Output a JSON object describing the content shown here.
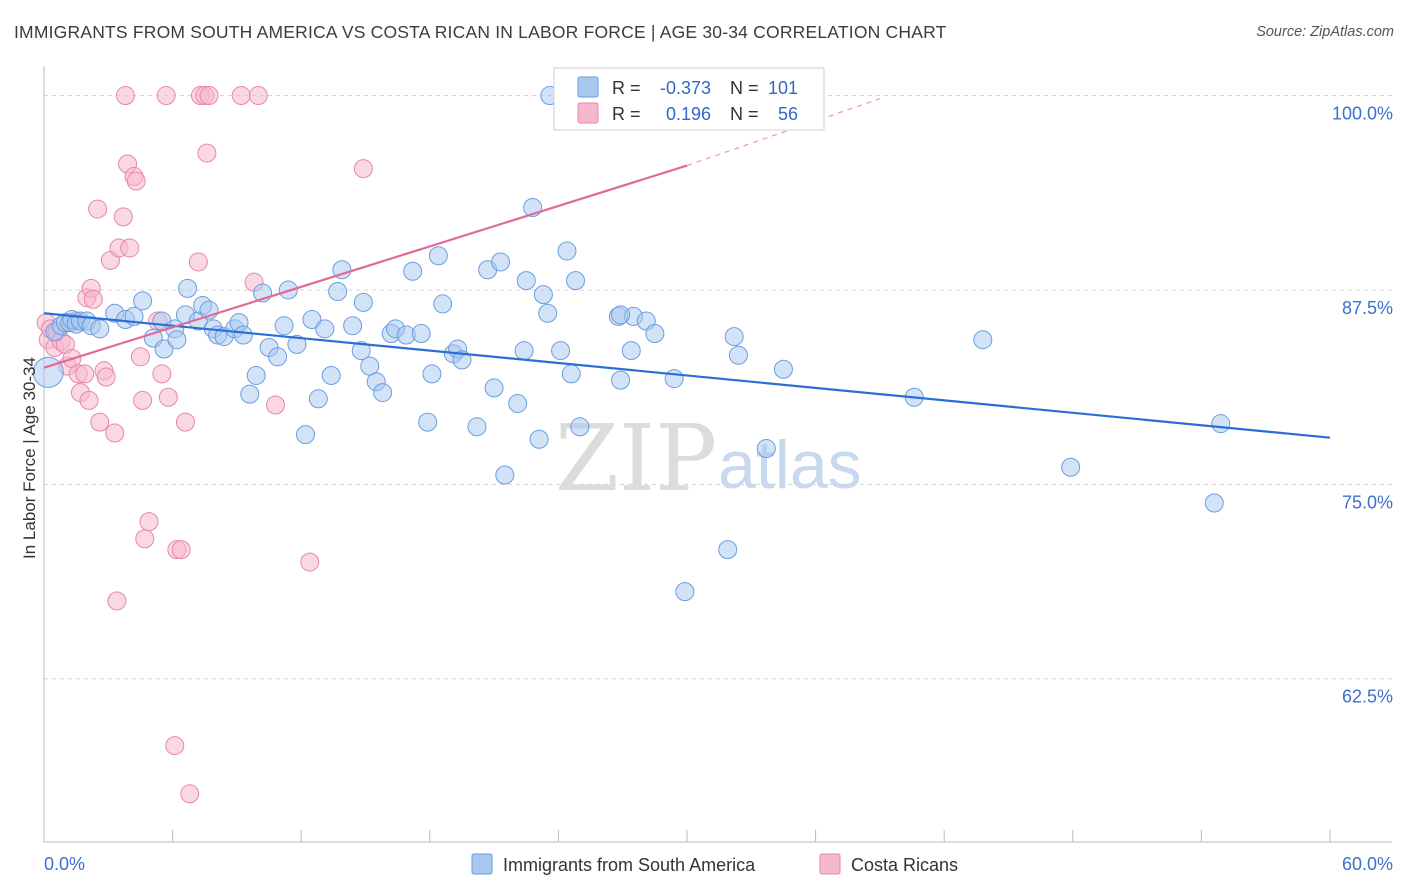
{
  "header": {
    "title": "IMMIGRANTS FROM SOUTH AMERICA VS COSTA RICAN IN LABOR FORCE | AGE 30-34 CORRELATION CHART",
    "source": "Source: ZipAtlas.com"
  },
  "legend": {
    "rows": [
      {
        "r_label": "R =",
        "r_value": "-0.373",
        "n_label": "N =",
        "n_value": "101",
        "color": "#a8c8f0",
        "stroke": "#6a9de0"
      },
      {
        "r_label": "R =",
        "r_value": "0.196",
        "n_label": "N =",
        "n_value": "56",
        "color": "#f5b8cc",
        "stroke": "#e887a8"
      }
    ]
  },
  "watermark": {
    "zip": "ZIP",
    "atlas": "atlas"
  },
  "chart_data": {
    "type": "scatter",
    "title": "IMMIGRANTS FROM SOUTH AMERICA VS COSTA RICAN IN LABOR FORCE | AGE 30-34 CORRELATION CHART",
    "xlabel": "",
    "ylabel": "In Labor Force | Age 30-34",
    "xlim": [
      0,
      60
    ],
    "ylim": [
      52,
      101
    ],
    "x_tick_labels": [
      "0.0%",
      "60.0%"
    ],
    "y_ticks": [
      100,
      87.5,
      75,
      62.5
    ],
    "y_tick_labels": [
      "100.0%",
      "87.5%",
      "75.0%",
      "62.5%"
    ],
    "grid": true,
    "legend_position": "top-center",
    "series": [
      {
        "name": "Immigrants from South America",
        "color": "#a8c8f0",
        "stroke": "#6a9de0",
        "trend": {
          "x": [
            0,
            60
          ],
          "y": [
            86.0,
            78.0
          ],
          "color": "#2b6fd6"
        },
        "points": [
          [
            0.2,
            82.2
          ],
          [
            0.5,
            84.8
          ],
          [
            0.8,
            85.2
          ],
          [
            1.0,
            85.4
          ],
          [
            1.2,
            85.4
          ],
          [
            1.3,
            85.6
          ],
          [
            1.5,
            85.3
          ],
          [
            1.7,
            85.5
          ],
          [
            2.0,
            85.5
          ],
          [
            2.2,
            85.2
          ],
          [
            2.6,
            85.0
          ],
          [
            3.3,
            86.0
          ],
          [
            3.8,
            85.6
          ],
          [
            4.2,
            85.8
          ],
          [
            4.6,
            86.8
          ],
          [
            5.1,
            84.4
          ],
          [
            5.5,
            85.5
          ],
          [
            5.6,
            83.7
          ],
          [
            6.1,
            85.0
          ],
          [
            6.2,
            84.3
          ],
          [
            6.6,
            85.9
          ],
          [
            6.7,
            87.6
          ],
          [
            7.2,
            85.5
          ],
          [
            7.4,
            86.5
          ],
          [
            7.7,
            86.2
          ],
          [
            7.9,
            85.0
          ],
          [
            8.1,
            84.6
          ],
          [
            8.4,
            84.5
          ],
          [
            8.9,
            85.0
          ],
          [
            9.1,
            85.4
          ],
          [
            9.3,
            84.6
          ],
          [
            9.6,
            80.8
          ],
          [
            9.9,
            82.0
          ],
          [
            10.2,
            87.3
          ],
          [
            10.5,
            83.8
          ],
          [
            10.9,
            83.2
          ],
          [
            11.2,
            85.2
          ],
          [
            11.4,
            87.5
          ],
          [
            11.8,
            84.0
          ],
          [
            12.2,
            78.2
          ],
          [
            12.5,
            85.6
          ],
          [
            12.8,
            80.5
          ],
          [
            13.1,
            85.0
          ],
          [
            13.4,
            82.0
          ],
          [
            13.7,
            87.4
          ],
          [
            13.9,
            88.8
          ],
          [
            14.4,
            85.2
          ],
          [
            14.8,
            83.6
          ],
          [
            14.9,
            86.7
          ],
          [
            15.2,
            82.6
          ],
          [
            15.5,
            81.6
          ],
          [
            15.8,
            80.9
          ],
          [
            16.2,
            84.7
          ],
          [
            16.4,
            85.0
          ],
          [
            16.9,
            84.6
          ],
          [
            17.2,
            88.7
          ],
          [
            17.6,
            84.7
          ],
          [
            17.9,
            79.0
          ],
          [
            18.1,
            82.1
          ],
          [
            18.4,
            89.7
          ],
          [
            18.6,
            86.6
          ],
          [
            19.1,
            83.4
          ],
          [
            19.3,
            83.7
          ],
          [
            19.5,
            83.0
          ],
          [
            20.2,
            78.7
          ],
          [
            20.7,
            88.8
          ],
          [
            21.0,
            81.2
          ],
          [
            21.3,
            89.3
          ],
          [
            21.5,
            75.6
          ],
          [
            22.1,
            80.2
          ],
          [
            22.4,
            83.6
          ],
          [
            22.5,
            88.1
          ],
          [
            22.8,
            92.8
          ],
          [
            23.1,
            77.9
          ],
          [
            23.3,
            87.2
          ],
          [
            23.5,
            86.0
          ],
          [
            23.6,
            100.0
          ],
          [
            24.1,
            83.6
          ],
          [
            24.4,
            90.0
          ],
          [
            24.6,
            82.1
          ],
          [
            24.8,
            88.1
          ],
          [
            25.0,
            78.7
          ],
          [
            26.8,
            85.8
          ],
          [
            26.9,
            81.7
          ],
          [
            27.4,
            83.6
          ],
          [
            27.5,
            85.8
          ],
          [
            28.1,
            85.5
          ],
          [
            28.5,
            84.7
          ],
          [
            29.4,
            81.8
          ],
          [
            29.9,
            68.1
          ],
          [
            31.9,
            70.8
          ],
          [
            32.2,
            84.5
          ],
          [
            32.4,
            83.3
          ],
          [
            33.7,
            77.3
          ],
          [
            34.5,
            82.4
          ],
          [
            40.6,
            80.6
          ],
          [
            43.8,
            84.3
          ],
          [
            47.9,
            76.1
          ],
          [
            54.6,
            73.8
          ],
          [
            54.9,
            78.9
          ],
          [
            26.9,
            85.9
          ]
        ]
      },
      {
        "name": "Costa Ricans",
        "color": "#f5b8cc",
        "stroke": "#e887a8",
        "trend": {
          "x": [
            0,
            30
          ],
          "y": [
            82.5,
            95.5
          ],
          "dash_to": {
            "x": 39,
            "y": 99.8
          },
          "color": "#e26a95"
        },
        "points": [
          [
            0.1,
            85.4
          ],
          [
            0.2,
            84.3
          ],
          [
            0.3,
            85.0
          ],
          [
            0.5,
            83.8
          ],
          [
            0.6,
            84.8
          ],
          [
            0.8,
            84.2
          ],
          [
            1.0,
            84.0
          ],
          [
            1.1,
            82.6
          ],
          [
            1.3,
            83.1
          ],
          [
            1.5,
            85.5
          ],
          [
            1.6,
            82.1
          ],
          [
            1.7,
            80.9
          ],
          [
            1.9,
            82.1
          ],
          [
            2.0,
            87.0
          ],
          [
            2.1,
            80.4
          ],
          [
            2.2,
            87.6
          ],
          [
            2.3,
            86.9
          ],
          [
            2.5,
            92.7
          ],
          [
            2.6,
            79.0
          ],
          [
            2.8,
            82.3
          ],
          [
            2.9,
            81.9
          ],
          [
            3.1,
            89.4
          ],
          [
            3.3,
            78.3
          ],
          [
            3.4,
            67.5
          ],
          [
            3.5,
            90.2
          ],
          [
            3.7,
            92.2
          ],
          [
            3.8,
            100.0
          ],
          [
            3.9,
            95.6
          ],
          [
            4.0,
            90.2
          ],
          [
            4.2,
            94.8
          ],
          [
            4.3,
            94.5
          ],
          [
            4.5,
            83.2
          ],
          [
            4.6,
            80.4
          ],
          [
            4.7,
            71.5
          ],
          [
            4.9,
            72.6
          ],
          [
            5.3,
            85.5
          ],
          [
            5.5,
            82.1
          ],
          [
            5.7,
            100.0
          ],
          [
            5.8,
            80.6
          ],
          [
            6.1,
            58.2
          ],
          [
            6.2,
            70.8
          ],
          [
            6.4,
            70.8
          ],
          [
            6.6,
            79.0
          ],
          [
            6.8,
            55.1
          ],
          [
            7.2,
            89.3
          ],
          [
            7.3,
            100.0
          ],
          [
            7.5,
            100.0
          ],
          [
            7.6,
            96.3
          ],
          [
            7.7,
            100.0
          ],
          [
            9.2,
            100.0
          ],
          [
            9.8,
            88.0
          ],
          [
            10.0,
            100.0
          ],
          [
            10.8,
            80.1
          ],
          [
            12.4,
            70.0
          ],
          [
            14.9,
            95.3
          ],
          [
            26.0,
            100.0
          ]
        ]
      }
    ]
  },
  "bottom_legend": {
    "items": [
      {
        "label": "Immigrants from South America",
        "color": "#a8c8f0",
        "stroke": "#6a9de0"
      },
      {
        "label": "Costa Ricans",
        "color": "#f5b8cc",
        "stroke": "#e887a8"
      }
    ]
  }
}
